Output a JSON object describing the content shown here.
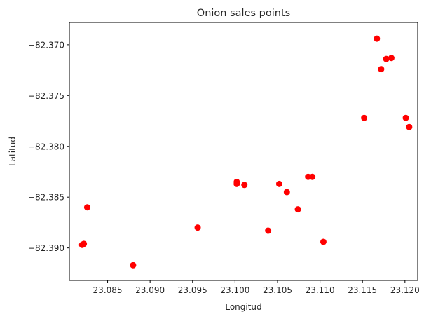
{
  "chart_data": {
    "type": "scatter",
    "title": "Onion sales points",
    "xlabel": "Longitud",
    "ylabel": "Latitud",
    "xlim": [
      23.0805,
      23.1215
    ],
    "ylim": [
      -82.3932,
      -82.3678
    ],
    "xticks": [
      23.085,
      23.09,
      23.095,
      23.1,
      23.105,
      23.11,
      23.115,
      23.12
    ],
    "xtick_labels": [
      "23.085",
      "23.090",
      "23.095",
      "23.100",
      "23.105",
      "23.110",
      "23.115",
      "23.120"
    ],
    "yticks": [
      -82.37,
      -82.375,
      -82.38,
      -82.385,
      -82.39
    ],
    "ytick_labels": [
      "−82.370",
      "−82.375",
      "−82.380",
      "−82.385",
      "−82.390"
    ],
    "grid": false,
    "marker_color": "#ff0000",
    "points": [
      {
        "x": 23.1167,
        "y": -82.3694
      },
      {
        "x": 23.1178,
        "y": -82.3714
      },
      {
        "x": 23.1184,
        "y": -82.3713
      },
      {
        "x": 23.1172,
        "y": -82.3724
      },
      {
        "x": 23.1152,
        "y": -82.3772
      },
      {
        "x": 23.1201,
        "y": -82.3772
      },
      {
        "x": 23.1205,
        "y": -82.3781
      },
      {
        "x": 23.1086,
        "y": -82.383
      },
      {
        "x": 23.1091,
        "y": -82.383
      },
      {
        "x": 23.1002,
        "y": -82.3835
      },
      {
        "x": 23.1002,
        "y": -82.3837
      },
      {
        "x": 23.1011,
        "y": -82.3838
      },
      {
        "x": 23.1052,
        "y": -82.3837
      },
      {
        "x": 23.1061,
        "y": -82.3845
      },
      {
        "x": 23.0826,
        "y": -82.386
      },
      {
        "x": 23.1074,
        "y": -82.3862
      },
      {
        "x": 23.0956,
        "y": -82.388
      },
      {
        "x": 23.1039,
        "y": -82.3883
      },
      {
        "x": 23.0822,
        "y": -82.3896
      },
      {
        "x": 23.082,
        "y": -82.3897
      },
      {
        "x": 23.1104,
        "y": -82.3894
      },
      {
        "x": 23.088,
        "y": -82.3917
      }
    ]
  }
}
